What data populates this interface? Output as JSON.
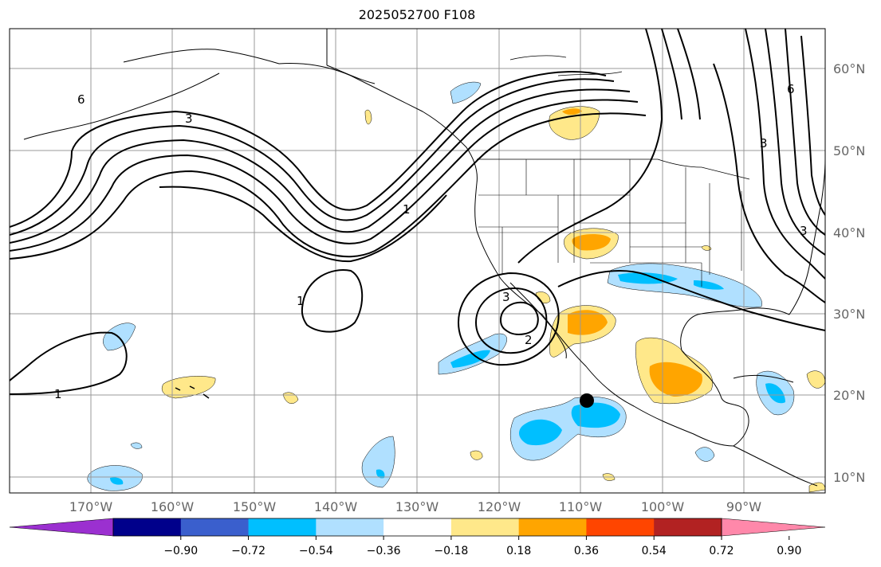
{
  "title": "2025052700 F108",
  "lat_labels": [
    "60°N",
    "50°N",
    "40°N",
    "30°N",
    "20°N",
    "10°N"
  ],
  "lon_labels": [
    "170°W",
    "160°W",
    "150°W",
    "140°W",
    "130°W",
    "120°W",
    "110°W",
    "100°W",
    "90°W"
  ],
  "colorbar": {
    "ticks": [
      "−0.90",
      "−0.72",
      "−0.54",
      "−0.36",
      "−0.18",
      "0.18",
      "0.36",
      "0.54",
      "0.72",
      "0.90"
    ],
    "colors": [
      "#9b30d0",
      "#00008b",
      "#3a5fcd",
      "#00bfff",
      "#b0e0ff",
      "#ffffff",
      "#ffe88a",
      "#ffa500",
      "#ff4500",
      "#b22222",
      "#ff88aa"
    ]
  },
  "contour_labels": [
    "6",
    "3",
    "1",
    "1",
    "1",
    "3",
    "2",
    "6",
    "3",
    "3"
  ],
  "colors": {
    "positive_low": "#ffe88a",
    "positive_mid": "#ffa500",
    "negative_low": "#b0e0ff",
    "negative_mid": "#00bfff",
    "grid": "#999999"
  }
}
